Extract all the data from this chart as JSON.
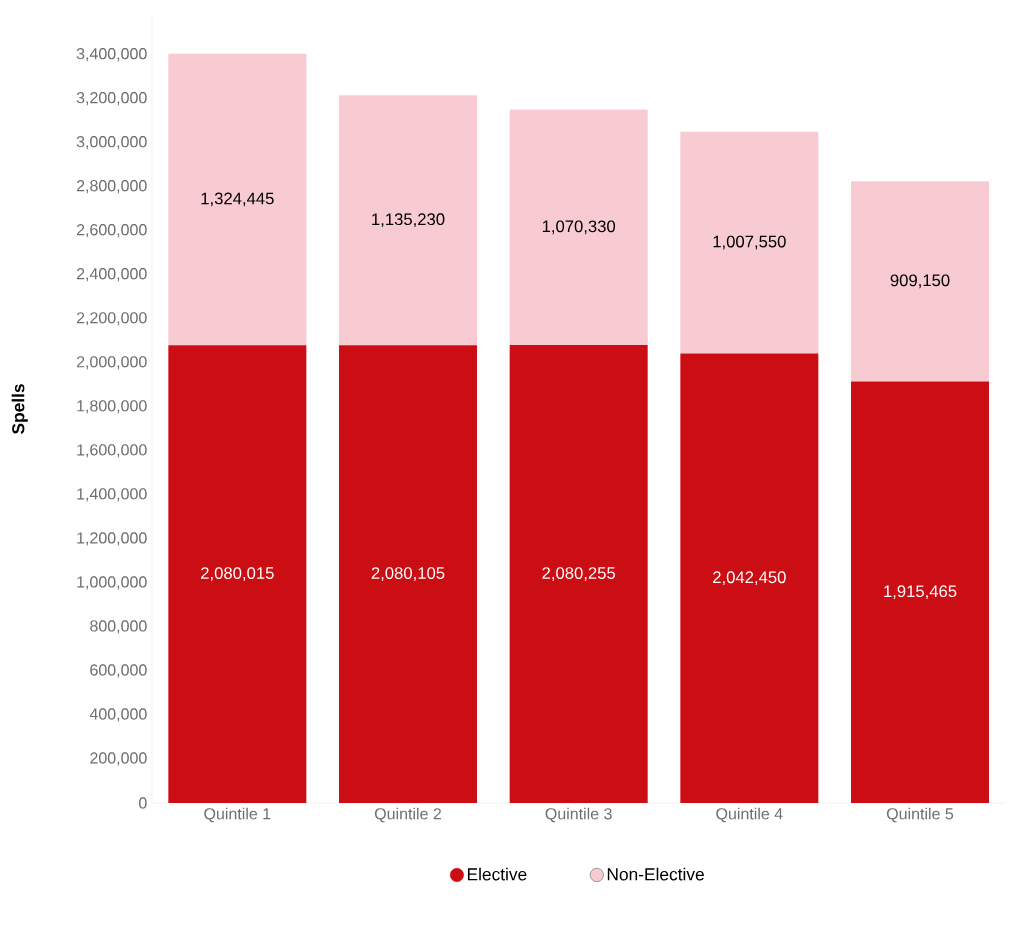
{
  "chart_data": {
    "type": "bar",
    "stacked": true,
    "ylabel": "Spells",
    "categories": [
      "Quintile 1",
      "Quintile 2",
      "Quintile 3",
      "Quintile 4",
      "Quintile 5"
    ],
    "series": [
      {
        "name": "Elective",
        "color": "#cb0d14",
        "values": [
          2080015,
          2080105,
          2080255,
          2042450,
          1915465
        ],
        "value_labels": [
          "2,080,015",
          "2,080,105",
          "2,080,255",
          "2,042,450",
          "1,915,465"
        ]
      },
      {
        "name": "Non-Elective",
        "color": "#f8cbd3",
        "values": [
          1324445,
          1135230,
          1070330,
          1007550,
          909150
        ],
        "value_labels": [
          "1,324,445",
          "1,135,230",
          "1,070,330",
          "1,007,550",
          "909,150"
        ]
      }
    ],
    "ylim": [
      0,
      3580000
    ],
    "yticks": [
      0,
      {
        "value": 200000,
        "label": "200,000"
      },
      {
        "value": 400000,
        "label": "400,000"
      },
      {
        "value": 600000,
        "label": "600,000"
      },
      {
        "value": 800000,
        "label": "800,000"
      },
      {
        "value": 1000000,
        "label": "1,000,000"
      },
      {
        "value": 1200000,
        "label": "1,200,000"
      },
      {
        "value": 1400000,
        "label": "1,400,000"
      },
      {
        "value": 1600000,
        "label": "1,600,000"
      },
      {
        "value": 1800000,
        "label": "1,800,000"
      },
      {
        "value": 2000000,
        "label": "2,000,000"
      },
      {
        "value": 2200000,
        "label": "2,200,000"
      },
      {
        "value": 2400000,
        "label": "2,400,000"
      },
      {
        "value": 2600000,
        "label": "2,600,000"
      },
      {
        "value": 2800000,
        "label": "2,800,000"
      },
      {
        "value": 3000000,
        "label": "3,000,000"
      },
      {
        "value": 3200000,
        "label": "3,200,000"
      },
      {
        "value": 3400000,
        "label": "3,400,000"
      }
    ],
    "legend": "bottom",
    "grid": false
  }
}
